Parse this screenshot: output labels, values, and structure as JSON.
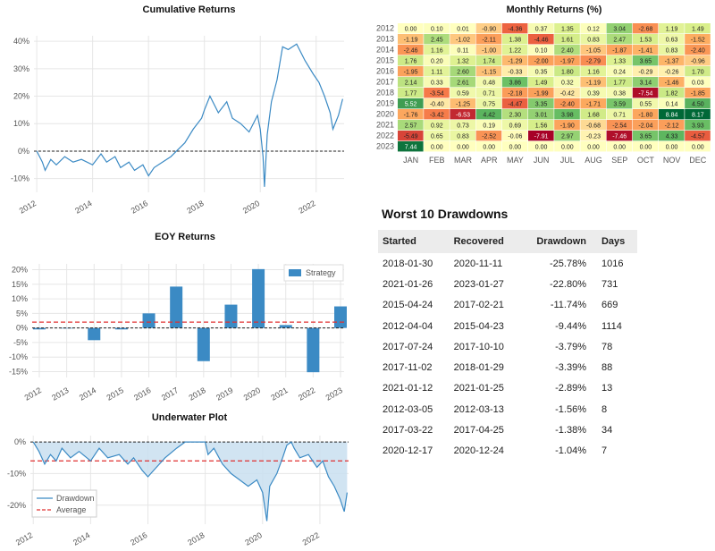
{
  "chart_data": [
    {
      "id": "cumulative",
      "type": "line",
      "title": "Cumulative Returns",
      "xlabel": "",
      "ylabel": "",
      "xlim": [
        2011.9,
        2023.0
      ],
      "ylim": [
        -15,
        42
      ],
      "yticks": [
        "40%",
        "30%",
        "20%",
        "10%",
        "0%",
        "-10%"
      ],
      "yticks_values": [
        40,
        30,
        20,
        10,
        0,
        -10
      ],
      "xticks": [
        "2012",
        "2014",
        "2016",
        "2018",
        "2020",
        "2022"
      ],
      "xticks_values": [
        2012,
        2014,
        2016,
        2018,
        2020,
        2022
      ],
      "color": "#3b8ac4",
      "x": [
        2012.0,
        2012.2,
        2012.3,
        2012.5,
        2012.7,
        2013.0,
        2013.3,
        2013.6,
        2014.0,
        2014.3,
        2014.5,
        2014.8,
        2015.0,
        2015.3,
        2015.5,
        2015.8,
        2016.0,
        2016.2,
        2016.5,
        2016.8,
        2017.0,
        2017.3,
        2017.6,
        2017.9,
        2018.0,
        2018.2,
        2018.5,
        2018.8,
        2019.0,
        2019.3,
        2019.6,
        2019.9,
        2020.0,
        2020.1,
        2020.15,
        2020.25,
        2020.4,
        2020.6,
        2020.8,
        2021.0,
        2021.3,
        2021.6,
        2021.9,
        2022.1,
        2022.3,
        2022.5,
        2022.6,
        2022.8,
        2022.95
      ],
      "values": [
        0,
        -4,
        -7,
        -3,
        -5,
        -2,
        -4,
        -3,
        -5,
        -1,
        -4,
        -2,
        -6,
        -4,
        -7,
        -5,
        -9,
        -6,
        -4,
        -2,
        0,
        3,
        8,
        12,
        15,
        20,
        14,
        18,
        12,
        10,
        7,
        13,
        8,
        -2,
        -13,
        6,
        18,
        26,
        38,
        37,
        39,
        33,
        28,
        25,
        20,
        14,
        8,
        13,
        19
      ]
    },
    {
      "id": "eoy",
      "type": "bar",
      "title": "EOY Returns",
      "categories": [
        "2012",
        "2013",
        "2014",
        "2015",
        "2016",
        "2017",
        "2018",
        "2019",
        "2020",
        "2021",
        "2022",
        "2023"
      ],
      "series": [
        {
          "name": "Strategy",
          "values": [
            -0.5,
            0.0,
            -4.2,
            -0.5,
            5.0,
            14.2,
            -11.4,
            8.0,
            20.2,
            1.0,
            -15.2,
            7.4
          ]
        }
      ],
      "average": 2.0,
      "ylim": [
        -17,
        22
      ],
      "yticks": [
        "20%",
        "15%",
        "10%",
        "5%",
        "0%",
        "-5%",
        "-10%",
        "-15%"
      ],
      "yticks_values": [
        20,
        15,
        10,
        5,
        0,
        -5,
        -10,
        -15
      ],
      "legend": "top-right",
      "color": "#3b8ac4"
    },
    {
      "id": "underwater",
      "type": "area",
      "title": "Underwater Plot",
      "xlim": [
        2011.9,
        2023.0
      ],
      "ylim": [
        -26,
        2
      ],
      "yticks": [
        "0%",
        "-10%",
        "-20%"
      ],
      "yticks_values": [
        0,
        -10,
        -20
      ],
      "xticks": [
        "2012",
        "2014",
        "2016",
        "2018",
        "2020",
        "2022"
      ],
      "xticks_values": [
        2012,
        2014,
        2016,
        2018,
        2020,
        2022
      ],
      "series_names": [
        "Drawdown",
        "Average"
      ],
      "average": -6.0,
      "color": "#3b8ac4",
      "x": [
        2012.0,
        2012.2,
        2012.4,
        2012.6,
        2012.8,
        2013.0,
        2013.3,
        2013.6,
        2014.0,
        2014.3,
        2014.6,
        2015.0,
        2015.3,
        2015.5,
        2015.8,
        2016.0,
        2016.3,
        2016.6,
        2017.0,
        2017.3,
        2017.6,
        2018.0,
        2018.1,
        2018.3,
        2018.6,
        2018.9,
        2019.2,
        2019.5,
        2019.8,
        2020.0,
        2020.15,
        2020.25,
        2020.5,
        2020.7,
        2020.85,
        2021.0,
        2021.1,
        2021.3,
        2021.6,
        2021.9,
        2022.1,
        2022.3,
        2022.5,
        2022.7,
        2022.85,
        2022.95
      ],
      "values": [
        0,
        -3,
        -7,
        -4,
        -6,
        -2,
        -5,
        -3,
        -6,
        -2,
        -5,
        -4,
        -7,
        -5,
        -9,
        -11,
        -8,
        -5,
        -2,
        0,
        0,
        0,
        -4,
        -2,
        -7,
        -10,
        -12,
        -14,
        -12,
        -16,
        -25,
        -14,
        -10,
        -5,
        -1,
        0,
        -2,
        -5,
        -4,
        -8,
        -6,
        -11,
        -14,
        -18,
        -22,
        -16
      ]
    },
    {
      "id": "monthly",
      "type": "heatmap",
      "title": "Monthly Returns (%)",
      "columns": [
        "JAN",
        "FEB",
        "MAR",
        "APR",
        "MAY",
        "JUN",
        "JUL",
        "AUG",
        "SEP",
        "OCT",
        "NOV",
        "DEC"
      ],
      "rows": [
        "2012",
        "2013",
        "2014",
        "2015",
        "2016",
        "2017",
        "2018",
        "2019",
        "2020",
        "2021",
        "2022",
        "2023"
      ],
      "labels": [
        [
          "0.00",
          "0.10",
          "0.01",
          "-0.90",
          "-4.36",
          "0.37",
          "1.35",
          "0.12",
          "3.04",
          "-2.68",
          "1.19",
          "1.49"
        ],
        [
          "-1.19",
          "2.45",
          "-1.02",
          "-2.11",
          "1.38",
          "-4.46",
          "1.61",
          "0.83",
          "2.47",
          "1.53",
          "0.63",
          "-1.52"
        ],
        [
          "-2.46",
          "1.16",
          "0.11",
          "-1.00",
          "1.22",
          "0.10",
          "2.40",
          "-1.05",
          "-1.87",
          "-1.41",
          "0.83",
          "-2.40"
        ],
        [
          "1.76",
          "0.20",
          "1.32",
          "1.74",
          "-1.29",
          "-2.00",
          "-1.97",
          "-2.79",
          "1.33",
          "3.65",
          "-1.37",
          "-0.96"
        ],
        [
          "-1.95",
          "1.11",
          "2.60",
          "-1.15",
          "-0.33",
          "0.35",
          "1.80",
          "1.16",
          "0.24",
          "-0.29",
          "-0.26",
          "1.70"
        ],
        [
          "2.14",
          "0.33",
          "2.61",
          "0.48",
          "3.86",
          "1.49",
          "0.32",
          "-1.19",
          "1.77",
          "3.14",
          "-1.46",
          "0.03"
        ],
        [
          "1.77",
          "-3.54",
          "0.59",
          "0.71",
          "-2.18",
          "-1.99",
          "-0.42",
          "0.39",
          "0.38",
          "-7.54",
          "1.82",
          "-1.85"
        ],
        [
          "5.52",
          "-0.40",
          "-1.25",
          "0.75",
          "-4.47",
          "3.35",
          "-2.40",
          "-1.71",
          "3.59",
          "0.55",
          "0.14",
          "4.50"
        ],
        [
          "-1.76",
          "-3.42",
          "-6.53",
          "4.42",
          "2.30",
          "3.01",
          "3.98",
          "1.68",
          "0.71",
          "-1.80",
          "8.84",
          "8.17"
        ],
        [
          "2.57",
          "0.92",
          "0.73",
          "0.19",
          "0.69",
          "1.56",
          "-1.90",
          "-0.68",
          "-2.54",
          "-2.04",
          "-2.12",
          "3.93"
        ],
        [
          "-5.49",
          "0.65",
          "0.83",
          "-2.52",
          "-0.06",
          "-7.91",
          "2.97",
          "-0.23",
          "-7.46",
          "3.65",
          "4.33",
          "-4.57"
        ],
        [
          "7.44",
          "0.00",
          "0.00",
          "0.00",
          "0.00",
          "0.00",
          "0.00",
          "0.00",
          "0.00",
          "0.00",
          "0.00",
          "0.00"
        ]
      ]
    }
  ],
  "drawdowns": {
    "title": "Worst 10 Drawdowns",
    "headers": [
      "Started",
      "Recovered",
      "Drawdown",
      "Days"
    ],
    "rows": [
      [
        "2018-01-30",
        "2020-11-11",
        "-25.78%",
        "1016"
      ],
      [
        "2021-01-26",
        "2023-01-27",
        "-22.80%",
        "731"
      ],
      [
        "2015-04-24",
        "2017-02-21",
        "-11.74%",
        "669"
      ],
      [
        "2012-04-04",
        "2015-04-23",
        "-9.44%",
        "1114"
      ],
      [
        "2017-07-24",
        "2017-10-10",
        "-3.79%",
        "78"
      ],
      [
        "2017-11-02",
        "2018-01-29",
        "-3.39%",
        "88"
      ],
      [
        "2021-01-12",
        "2021-01-25",
        "-2.89%",
        "13"
      ],
      [
        "2012-03-05",
        "2012-03-13",
        "-1.56%",
        "8"
      ],
      [
        "2017-03-22",
        "2017-04-25",
        "-1.38%",
        "34"
      ],
      [
        "2020-12-17",
        "2020-12-24",
        "-1.04%",
        "7"
      ]
    ]
  },
  "colors": {
    "line": "#3b8ac4",
    "average": "#e03030",
    "fill": "#c9dff0",
    "grid": "#e6e6e6"
  }
}
